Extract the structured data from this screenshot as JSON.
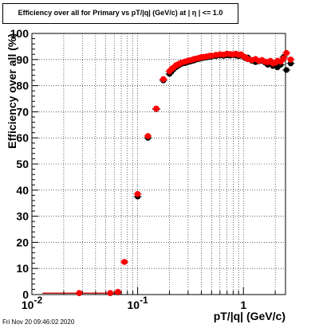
{
  "title": "Efficiency over all for Primary vs pT/|q| (GeV/c) at | η | <= 1.0",
  "footer": "Fri Nov 20 09:46:02 2020",
  "chart_data": {
    "type": "scatter",
    "xlabel": "pT/|q| (GeV/c)",
    "ylabel": "Efficiency over all (%)",
    "xscale": "log",
    "xlim": [
      0.01,
      2.5
    ],
    "ylim": [
      0,
      100
    ],
    "xticks": [
      {
        "label": "10",
        "sup": "-2",
        "value": 0.01
      },
      {
        "label": "10",
        "sup": "-1",
        "value": 0.1
      },
      {
        "label": "1",
        "sup": "",
        "value": 1
      }
    ],
    "yticks": [
      0,
      10,
      20,
      30,
      40,
      50,
      60,
      70,
      80,
      90,
      100
    ],
    "grid": true,
    "colors": {
      "series_a": "#000000",
      "series_b": "#ff0000"
    },
    "series": [
      {
        "color": "#000000",
        "points": [
          [
            0.028,
            0.5
          ],
          [
            0.055,
            0.5
          ],
          [
            0.065,
            0.8
          ],
          [
            0.075,
            12.5
          ],
          [
            0.1,
            37.5
          ],
          [
            0.125,
            60
          ],
          [
            0.15,
            71
          ],
          [
            0.175,
            82
          ],
          [
            0.2,
            84.5
          ],
          [
            0.21,
            85.5
          ],
          [
            0.22,
            86.5
          ],
          [
            0.23,
            87
          ],
          [
            0.24,
            87.5
          ],
          [
            0.25,
            88
          ],
          [
            0.26,
            88.3
          ],
          [
            0.28,
            88.6
          ],
          [
            0.3,
            89
          ],
          [
            0.32,
            89.3
          ],
          [
            0.34,
            89.6
          ],
          [
            0.36,
            90
          ],
          [
            0.38,
            90.2
          ],
          [
            0.4,
            90.5
          ],
          [
            0.42,
            90.6
          ],
          [
            0.45,
            90.8
          ],
          [
            0.48,
            91
          ],
          [
            0.5,
            91.1
          ],
          [
            0.55,
            91.3
          ],
          [
            0.6,
            91.5
          ],
          [
            0.65,
            91.4
          ],
          [
            0.7,
            91.6
          ],
          [
            0.75,
            91.5
          ],
          [
            0.8,
            91.7
          ],
          [
            0.85,
            91.5
          ],
          [
            0.9,
            91.3
          ],
          [
            0.95,
            91.6
          ],
          [
            1.0,
            91.0
          ],
          [
            1.05,
            90.5
          ],
          [
            1.1,
            90.8
          ],
          [
            1.2,
            89.5
          ],
          [
            1.3,
            89.0
          ],
          [
            1.4,
            89.3
          ],
          [
            1.5,
            89.5
          ],
          [
            1.6,
            88.8
          ],
          [
            1.7,
            88.0
          ],
          [
            1.8,
            88.5
          ],
          [
            1.9,
            87.5
          ],
          [
            2.0,
            87.8
          ],
          [
            2.1,
            87.0
          ],
          [
            2.25,
            88.0
          ],
          [
            2.4,
            91.0
          ],
          [
            2.55,
            86.0
          ],
          [
            2.8,
            88.5
          ]
        ]
      },
      {
        "color": "#ff0000",
        "points": [
          [
            0.028,
            0.6
          ],
          [
            0.055,
            0.6
          ],
          [
            0.065,
            1.0
          ],
          [
            0.075,
            12.5
          ],
          [
            0.1,
            38.5
          ],
          [
            0.125,
            60.7
          ],
          [
            0.15,
            71.2
          ],
          [
            0.175,
            82.5
          ],
          [
            0.2,
            85.5
          ],
          [
            0.21,
            86.5
          ],
          [
            0.22,
            87
          ],
          [
            0.23,
            87.8
          ],
          [
            0.24,
            88.1
          ],
          [
            0.25,
            88.5
          ],
          [
            0.26,
            88.8
          ],
          [
            0.28,
            89.2
          ],
          [
            0.3,
            89.6
          ],
          [
            0.32,
            89.8
          ],
          [
            0.34,
            90.2
          ],
          [
            0.36,
            90.4
          ],
          [
            0.38,
            90.6
          ],
          [
            0.4,
            90.9
          ],
          [
            0.42,
            91.0
          ],
          [
            0.45,
            91.2
          ],
          [
            0.48,
            91.4
          ],
          [
            0.5,
            91.5
          ],
          [
            0.55,
            91.8
          ],
          [
            0.6,
            92.0
          ],
          [
            0.65,
            91.9
          ],
          [
            0.7,
            92.2
          ],
          [
            0.75,
            92.1
          ],
          [
            0.8,
            92.0
          ],
          [
            0.85,
            92.2
          ],
          [
            0.9,
            91.8
          ],
          [
            0.95,
            92.0
          ],
          [
            1.0,
            91.2
          ],
          [
            1.05,
            90.8
          ],
          [
            1.1,
            90.2
          ],
          [
            1.2,
            89.8
          ],
          [
            1.3,
            90.2
          ],
          [
            1.4,
            89.5
          ],
          [
            1.5,
            89.8
          ],
          [
            1.6,
            89.2
          ],
          [
            1.7,
            89.0
          ],
          [
            1.8,
            89.5
          ],
          [
            1.9,
            88.5
          ],
          [
            2.0,
            88.8
          ],
          [
            2.1,
            89.5
          ],
          [
            2.25,
            89.2
          ],
          [
            2.4,
            90.5
          ],
          [
            2.55,
            92.5
          ],
          [
            2.8,
            90.0
          ]
        ]
      }
    ]
  }
}
